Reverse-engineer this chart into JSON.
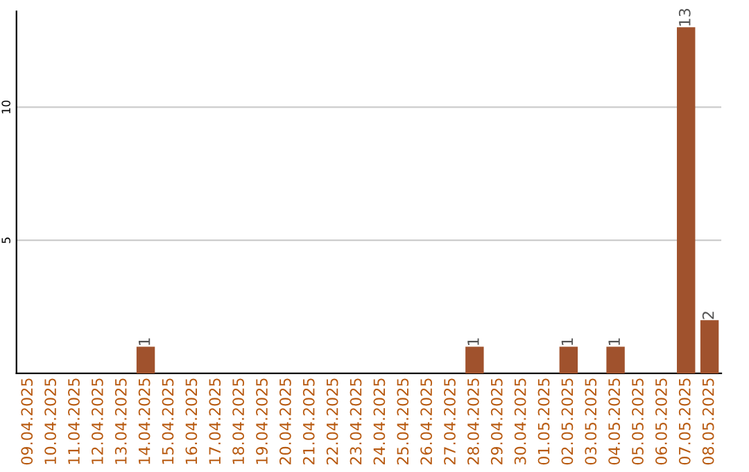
{
  "chart_data": {
    "type": "bar",
    "categories": [
      "09.04.2025",
      "10.04.2025",
      "11.04.2025",
      "12.04.2025",
      "13.04.2025",
      "14.04.2025",
      "15.04.2025",
      "16.04.2025",
      "17.04.2025",
      "18.04.2025",
      "19.04.2025",
      "20.04.2025",
      "21.04.2025",
      "22.04.2025",
      "23.04.2025",
      "24.04.2025",
      "25.04.2025",
      "26.04.2025",
      "27.04.2025",
      "28.04.2025",
      "29.04.2025",
      "30.04.2025",
      "01.05.2025",
      "02.05.2025",
      "03.05.2025",
      "04.05.2025",
      "05.05.2025",
      "06.05.2025",
      "07.05.2025",
      "08.05.2025"
    ],
    "values": [
      0,
      0,
      0,
      0,
      0,
      1,
      0,
      0,
      0,
      0,
      0,
      0,
      0,
      0,
      0,
      0,
      0,
      0,
      0,
      1,
      0,
      0,
      0,
      1,
      0,
      1,
      0,
      0,
      13,
      2
    ],
    "value_labels": [
      null,
      null,
      null,
      null,
      null,
      "1",
      null,
      null,
      null,
      null,
      null,
      null,
      null,
      null,
      null,
      null,
      null,
      null,
      null,
      "1",
      null,
      null,
      null,
      "1",
      null,
      "1",
      null,
      null,
      "13",
      "2"
    ],
    "color": "#a0522d",
    "ylim": [
      0,
      13.6
    ],
    "yticks": [
      5,
      10
    ],
    "grid": "y",
    "legend": false
  }
}
